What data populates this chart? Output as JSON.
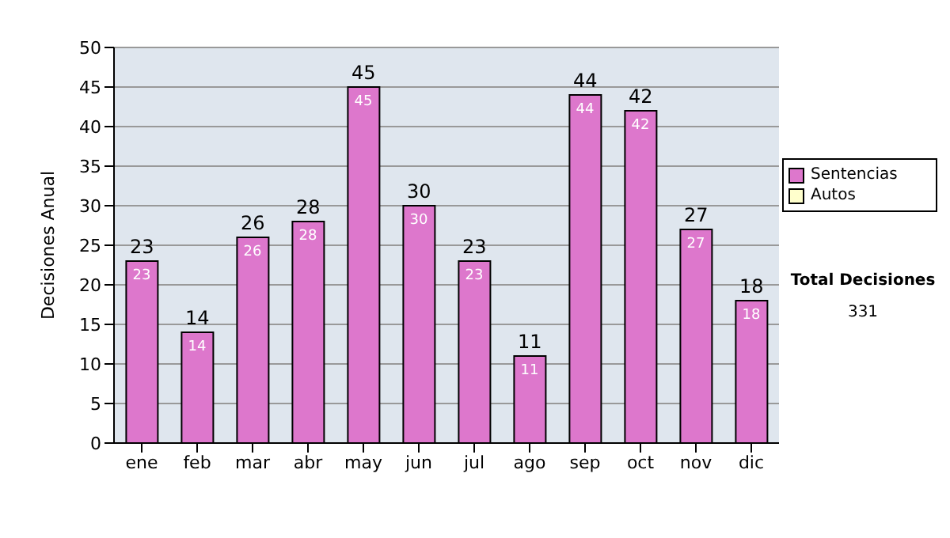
{
  "chart_data": {
    "type": "bar",
    "ylabel": "Decisiones Anual",
    "categories": [
      "ene",
      "feb",
      "mar",
      "abr",
      "may",
      "jun",
      "jul",
      "ago",
      "sep",
      "oct",
      "nov",
      "dic"
    ],
    "series": [
      {
        "name": "Sentencias",
        "color": "#dd77cc",
        "values": [
          23,
          14,
          26,
          28,
          45,
          30,
          23,
          11,
          44,
          42,
          27,
          18
        ],
        "value_labels": [
          "23",
          "14",
          "26",
          "28",
          "45",
          "30",
          "23",
          "11",
          "44",
          "42",
          "27",
          "18"
        ]
      },
      {
        "name": "Autos",
        "color": "#ffffcc",
        "values": [
          null,
          null,
          null,
          null,
          null,
          null,
          null,
          null,
          null,
          null,
          null,
          null
        ]
      }
    ],
    "ylim": [
      0,
      50
    ],
    "yticks": [
      0,
      5,
      10,
      15,
      20,
      25,
      30,
      35,
      40,
      45,
      50
    ],
    "grid": "y",
    "legend": "right",
    "annotations": [
      "Total Decisiones",
      "331",
      {
        "text": "23",
        "x": "ene",
        "y": 23
      },
      {
        "text": "14",
        "x": "feb",
        "y": 14
      },
      {
        "text": "26",
        "x": "mar",
        "y": 26
      },
      {
        "text": "28",
        "x": "abr",
        "y": 28
      },
      {
        "text": "45",
        "x": "may",
        "y": 45
      },
      {
        "text": "30",
        "x": "jun",
        "y": 30
      },
      {
        "text": "23",
        "x": "jul",
        "y": 23
      },
      {
        "text": "11",
        "x": "ago",
        "y": 11
      },
      {
        "text": "44",
        "x": "sep",
        "y": 44
      },
      {
        "text": "42",
        "x": "oct",
        "y": 42
      },
      {
        "text": "27",
        "x": "nov",
        "y": 27
      },
      {
        "text": "18",
        "x": "dic",
        "y": 18
      }
    ]
  }
}
